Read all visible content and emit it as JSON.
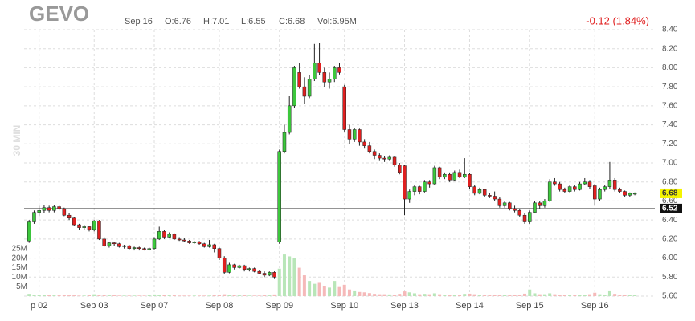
{
  "chart_data": {
    "type": "candlestick",
    "title": "GEVO",
    "header_stats": [
      "Sep 16",
      "O:6.76",
      "H:7.01",
      "L:6.55",
      "C:6.68",
      "Vol:6.95M"
    ],
    "change": "-0.12 (1.84%)",
    "interval": "30 MIN",
    "up_color": "#3cc83c",
    "down_color": "#e01f1f",
    "ylim": [
      5.6,
      8.4
    ],
    "yticks": [
      {
        "value": 5.6,
        "label": "5.60"
      },
      {
        "value": 5.8,
        "label": "5.80"
      },
      {
        "value": 6.0,
        "label": "6.00"
      },
      {
        "value": 6.2,
        "label": "6.20"
      },
      {
        "value": 6.4,
        "label": "6.40"
      },
      {
        "value": 6.6,
        "label": "6.60"
      },
      {
        "value": 6.8,
        "label": "6.80"
      },
      {
        "value": 7.0,
        "label": "7.00"
      },
      {
        "value": 7.2,
        "label": "7.20"
      },
      {
        "value": 7.4,
        "label": "7.40"
      },
      {
        "value": 7.6,
        "label": "7.60"
      },
      {
        "value": 7.8,
        "label": "7.80"
      },
      {
        "value": 8.0,
        "label": "8.00"
      },
      {
        "value": 8.2,
        "label": "8.20"
      },
      {
        "value": 8.4,
        "label": "8.40"
      }
    ],
    "xlim": [
      -1,
      125
    ],
    "xticks": [
      {
        "value": 2,
        "label": "p 02"
      },
      {
        "value": 13,
        "label": "Sep 03"
      },
      {
        "value": 25,
        "label": "Sep 07"
      },
      {
        "value": 38,
        "label": "Sep 08"
      },
      {
        "value": 50,
        "label": "Sep 09"
      },
      {
        "value": 63,
        "label": "Sep 10"
      },
      {
        "value": 75,
        "label": "Sep 13"
      },
      {
        "value": 88,
        "label": "Sep 14"
      },
      {
        "value": 100,
        "label": "Sep 15"
      },
      {
        "value": 113,
        "label": "Sep 16"
      }
    ],
    "last_price": 6.68,
    "reference_line": 6.52,
    "vol_ylim": [
      0,
      25
    ],
    "vol_ticks": [
      {
        "value": 5,
        "label": "5M"
      },
      {
        "value": 10,
        "label": "10M"
      },
      {
        "value": 15,
        "label": "15M"
      },
      {
        "value": 20,
        "label": "20M"
      },
      {
        "value": 25,
        "label": "25M"
      }
    ],
    "ohlc": [
      [
        6.18,
        6.4,
        6.16,
        6.38
      ],
      [
        6.38,
        6.5,
        6.36,
        6.48
      ],
      [
        6.48,
        6.55,
        6.44,
        6.5
      ],
      [
        6.5,
        6.56,
        6.47,
        6.53
      ],
      [
        6.53,
        6.55,
        6.48,
        6.5
      ],
      [
        6.5,
        6.56,
        6.48,
        6.54
      ],
      [
        6.54,
        6.56,
        6.5,
        6.52
      ],
      [
        6.52,
        6.53,
        6.44,
        6.45
      ],
      [
        6.45,
        6.47,
        6.4,
        6.42
      ],
      [
        6.42,
        6.43,
        6.34,
        6.35
      ],
      [
        6.35,
        6.36,
        6.3,
        6.32
      ],
      [
        6.32,
        6.35,
        6.3,
        6.33
      ],
      [
        6.33,
        6.34,
        6.28,
        6.3
      ],
      [
        6.3,
        6.4,
        6.28,
        6.39
      ],
      [
        6.39,
        6.4,
        6.19,
        6.2
      ],
      [
        6.2,
        6.22,
        6.12,
        6.13
      ],
      [
        6.13,
        6.17,
        6.11,
        6.16
      ],
      [
        6.16,
        6.17,
        6.13,
        6.15
      ],
      [
        6.15,
        6.16,
        6.11,
        6.12
      ],
      [
        6.12,
        6.14,
        6.1,
        6.13
      ],
      [
        6.13,
        6.14,
        6.09,
        6.1
      ],
      [
        6.1,
        6.12,
        6.08,
        6.11
      ],
      [
        6.11,
        6.12,
        6.08,
        6.1
      ],
      [
        6.1,
        6.11,
        6.08,
        6.09
      ],
      [
        6.09,
        6.11,
        6.08,
        6.1
      ],
      [
        6.1,
        6.22,
        6.09,
        6.2
      ],
      [
        6.2,
        6.33,
        6.19,
        6.28
      ],
      [
        6.28,
        6.3,
        6.2,
        6.22
      ],
      [
        6.22,
        6.27,
        6.21,
        6.25
      ],
      [
        6.25,
        6.26,
        6.19,
        6.2
      ],
      [
        6.2,
        6.22,
        6.18,
        6.19
      ],
      [
        6.19,
        6.21,
        6.17,
        6.18
      ],
      [
        6.18,
        6.19,
        6.15,
        6.16
      ],
      [
        6.16,
        6.18,
        6.15,
        6.17
      ],
      [
        6.17,
        6.18,
        6.14,
        6.15
      ],
      [
        6.15,
        6.16,
        6.11,
        6.12
      ],
      [
        6.12,
        6.19,
        6.11,
        6.14
      ],
      [
        6.14,
        6.15,
        6.06,
        6.1
      ],
      [
        6.1,
        6.11,
        5.98,
        6.0
      ],
      [
        6.0,
        6.02,
        5.83,
        5.85
      ],
      [
        5.85,
        5.95,
        5.84,
        5.93
      ],
      [
        5.93,
        5.94,
        5.88,
        5.9
      ],
      [
        5.9,
        5.93,
        5.89,
        5.92
      ],
      [
        5.92,
        5.93,
        5.86,
        5.88
      ],
      [
        5.88,
        5.9,
        5.86,
        5.89
      ],
      [
        5.89,
        5.9,
        5.85,
        5.86
      ],
      [
        5.86,
        5.87,
        5.83,
        5.84
      ],
      [
        5.84,
        5.86,
        5.8,
        5.82
      ],
      [
        5.82,
        5.86,
        5.81,
        5.85
      ],
      [
        5.85,
        5.86,
        5.78,
        5.8
      ],
      [
        6.17,
        7.14,
        6.15,
        7.12
      ],
      [
        7.12,
        7.4,
        7.1,
        7.32
      ],
      [
        7.32,
        7.7,
        7.3,
        7.6
      ],
      [
        7.6,
        8.02,
        7.58,
        8.0
      ],
      [
        7.95,
        8.05,
        7.78,
        7.8
      ],
      [
        7.8,
        7.9,
        7.62,
        7.7
      ],
      [
        7.7,
        7.92,
        7.68,
        7.88
      ],
      [
        7.88,
        8.25,
        7.86,
        8.05
      ],
      [
        8.05,
        8.26,
        7.92,
        7.95
      ],
      [
        7.95,
        8.0,
        7.8,
        7.85
      ],
      [
        7.85,
        7.95,
        7.78,
        7.88
      ],
      [
        7.88,
        8.02,
        7.85,
        8.0
      ],
      [
        8.0,
        8.05,
        7.93,
        7.95
      ],
      [
        7.8,
        7.82,
        7.33,
        7.35
      ],
      [
        7.35,
        7.4,
        7.2,
        7.25
      ],
      [
        7.25,
        7.37,
        7.22,
        7.35
      ],
      [
        7.35,
        7.36,
        7.18,
        7.22
      ],
      [
        7.22,
        7.25,
        7.15,
        7.18
      ],
      [
        7.18,
        7.22,
        7.1,
        7.12
      ],
      [
        7.12,
        7.14,
        7.04,
        7.08
      ],
      [
        7.08,
        7.1,
        7.02,
        7.05
      ],
      [
        7.05,
        7.07,
        7.01,
        7.04
      ],
      [
        7.04,
        7.08,
        7.02,
        7.06
      ],
      [
        7.06,
        7.07,
        6.96,
        6.98
      ],
      [
        6.98,
        7.0,
        6.88,
        6.9
      ],
      [
        6.97,
        6.98,
        6.45,
        6.62
      ],
      [
        6.62,
        6.72,
        6.58,
        6.7
      ],
      [
        6.7,
        6.77,
        6.66,
        6.75
      ],
      [
        6.75,
        6.76,
        6.67,
        6.7
      ],
      [
        6.7,
        6.82,
        6.69,
        6.8
      ],
      [
        6.8,
        6.82,
        6.74,
        6.78
      ],
      [
        6.78,
        6.97,
        6.77,
        6.95
      ],
      [
        6.95,
        6.96,
        6.83,
        6.85
      ],
      [
        6.85,
        6.9,
        6.83,
        6.88
      ],
      [
        6.88,
        6.9,
        6.8,
        6.82
      ],
      [
        6.82,
        6.92,
        6.81,
        6.9
      ],
      [
        6.9,
        6.93,
        6.84,
        6.85
      ],
      [
        6.85,
        7.05,
        6.84,
        6.88
      ],
      [
        6.88,
        6.89,
        6.73,
        6.75
      ],
      [
        6.75,
        6.77,
        6.66,
        6.68
      ],
      [
        6.68,
        6.74,
        6.67,
        6.72
      ],
      [
        6.72,
        6.73,
        6.64,
        6.66
      ],
      [
        6.66,
        6.68,
        6.63,
        6.65
      ],
      [
        6.65,
        6.7,
        6.6,
        6.62
      ],
      [
        6.62,
        6.64,
        6.53,
        6.55
      ],
      [
        6.55,
        6.6,
        6.53,
        6.58
      ],
      [
        6.58,
        6.59,
        6.5,
        6.52
      ],
      [
        6.52,
        6.55,
        6.48,
        6.5
      ],
      [
        6.5,
        6.52,
        6.43,
        6.45
      ],
      [
        6.45,
        6.47,
        6.36,
        6.38
      ],
      [
        6.38,
        6.5,
        6.36,
        6.48
      ],
      [
        6.48,
        6.6,
        6.47,
        6.58
      ],
      [
        6.58,
        6.6,
        6.52,
        6.55
      ],
      [
        6.55,
        6.62,
        6.53,
        6.6
      ],
      [
        6.6,
        6.83,
        6.59,
        6.8
      ],
      [
        6.8,
        6.84,
        6.76,
        6.78
      ],
      [
        6.78,
        6.8,
        6.7,
        6.72
      ],
      [
        6.72,
        6.74,
        6.68,
        6.7
      ],
      [
        6.7,
        6.77,
        6.69,
        6.75
      ],
      [
        6.75,
        6.77,
        6.7,
        6.72
      ],
      [
        6.72,
        6.8,
        6.71,
        6.78
      ],
      [
        6.78,
        6.84,
        6.77,
        6.8
      ],
      [
        6.8,
        6.82,
        6.73,
        6.75
      ],
      [
        6.76,
        6.78,
        6.55,
        6.62
      ],
      [
        6.62,
        6.74,
        6.6,
        6.72
      ],
      [
        6.72,
        6.77,
        6.7,
        6.75
      ],
      [
        6.75,
        7.01,
        6.73,
        6.82
      ],
      [
        6.82,
        6.84,
        6.7,
        6.72
      ],
      [
        6.72,
        6.74,
        6.68,
        6.7
      ],
      [
        6.7,
        6.71,
        6.64,
        6.66
      ],
      [
        6.66,
        6.69,
        6.64,
        6.68
      ],
      [
        6.68,
        6.69,
        6.66,
        6.68
      ]
    ],
    "volume": [
      1.2,
      0.8,
      0.6,
      0.5,
      0.5,
      0.4,
      0.4,
      0.5,
      0.4,
      0.4,
      0.3,
      0.3,
      0.5,
      1.0,
      0.8,
      0.6,
      0.4,
      0.4,
      0.3,
      0.3,
      0.3,
      0.3,
      0.3,
      0.3,
      0.4,
      0.9,
      0.8,
      0.5,
      0.4,
      0.4,
      0.3,
      0.3,
      0.3,
      0.3,
      0.3,
      0.3,
      0.3,
      0.5,
      0.8,
      1.0,
      0.6,
      0.5,
      0.4,
      0.4,
      0.3,
      0.3,
      0.3,
      0.4,
      0.4,
      0.9,
      14.5,
      22,
      21,
      20,
      15,
      11,
      8,
      6.5,
      7,
      5.5,
      4.5,
      8,
      4.8,
      6,
      3.5,
      3,
      2.2,
      2,
      1.6,
      1.2,
      1,
      1,
      0.9,
      0.8,
      1.2,
      2.5,
      2,
      1.5,
      1,
      1.2,
      1,
      1.5,
      1,
      0.8,
      0.7,
      0.8,
      0.6,
      1.2,
      1.3,
      1,
      0.8,
      0.7,
      0.6,
      0.6,
      0.7,
      0.6,
      0.6,
      0.7,
      0.8,
      1.3,
      3.5,
      1.5,
      1,
      1,
      1.5,
      1,
      0.8,
      0.7,
      0.6,
      0.6,
      0.6,
      0.5,
      1,
      1.8,
      1,
      0.8,
      3,
      1.2,
      0.8,
      0.7,
      0.6,
      0.5
    ]
  }
}
